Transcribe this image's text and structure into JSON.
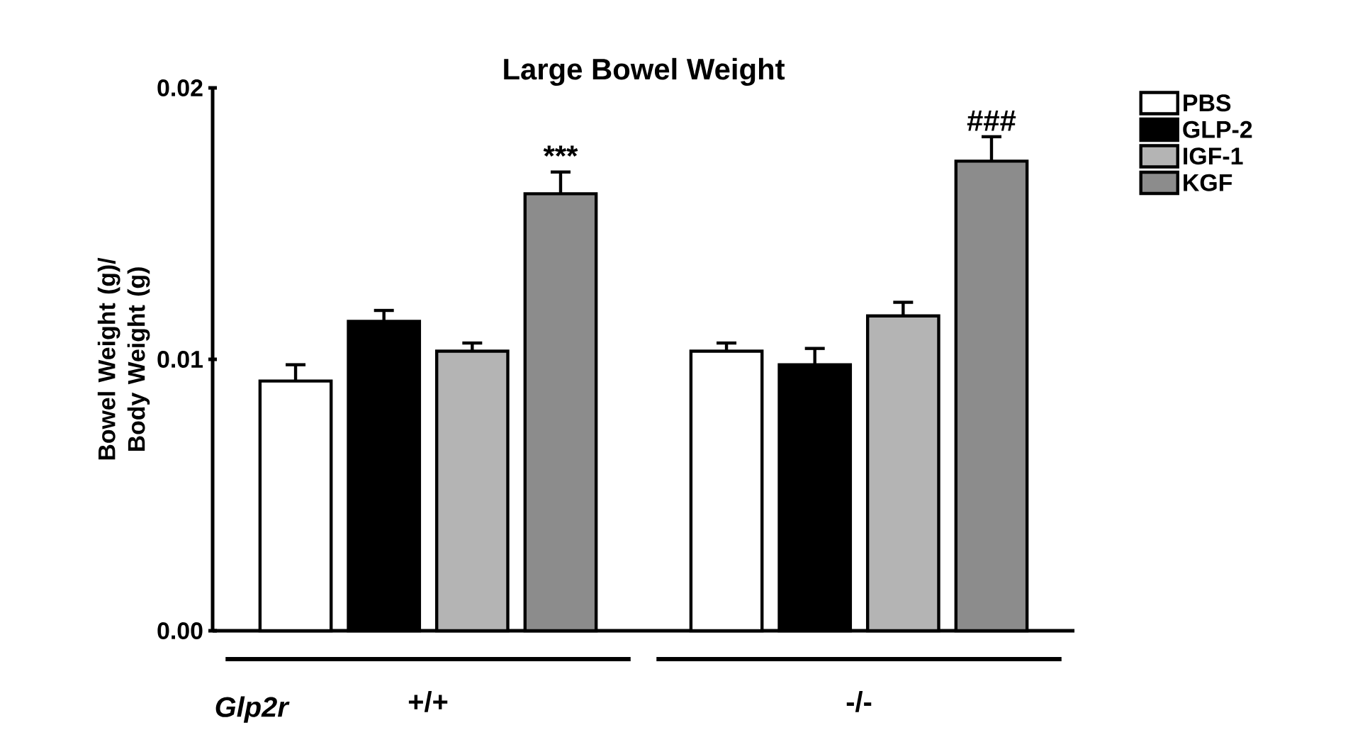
{
  "chart_data": {
    "type": "bar",
    "title": "Large Bowel Weight",
    "xlabel": "Glp2r",
    "ylabel": "Bowel Weight (g)/ Body Weight (g)",
    "categories": [
      "+/+",
      "-/-"
    ],
    "series": [
      {
        "name": "PBS",
        "color": "#ffffff",
        "values": [
          0.0092,
          0.0103
        ],
        "errors": [
          [
            0.0092,
            0.0098
          ],
          [
            0.0103,
            0.0106
          ]
        ]
      },
      {
        "name": "GLP-2",
        "color": "#000000",
        "values": [
          0.0114,
          0.0098
        ],
        "errors": [
          [
            0.0114,
            0.0118
          ],
          [
            0.0098,
            0.0104
          ]
        ]
      },
      {
        "name": "IGF-1",
        "color": "#b4b4b4",
        "values": [
          0.0103,
          0.0116
        ],
        "errors": [
          [
            0.0103,
            0.0106
          ],
          [
            0.0116,
            0.0121
          ]
        ]
      },
      {
        "name": "KGF",
        "color": "#8c8c8c",
        "values": [
          0.0161,
          0.0173
        ],
        "errors": [
          [
            0.0161,
            0.0169
          ],
          [
            0.0173,
            0.0182
          ]
        ]
      }
    ],
    "ylim": [
      0,
      0.02
    ],
    "yticks": [
      {
        "value": 0,
        "label": "0.00"
      },
      {
        "value": 0.01,
        "label": "0.01"
      },
      {
        "value": 0.02,
        "label": "0.02"
      }
    ],
    "annotations": [
      "***",
      "###"
    ],
    "legend": "top right",
    "grid": false
  }
}
